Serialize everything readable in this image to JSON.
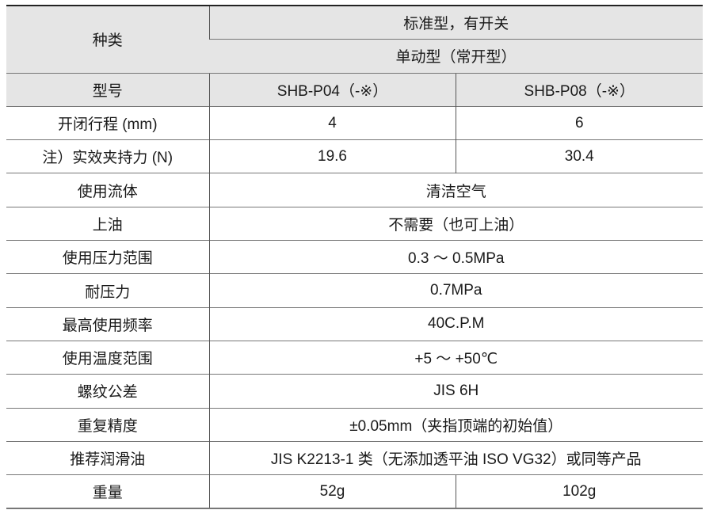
{
  "header": {
    "category_label": "种类",
    "type_line1": "标准型，有开关",
    "type_line2": "单动型（常开型）",
    "model_label": "型号",
    "models": [
      "SHB-P04（-※）",
      "SHB-P08（-※）"
    ]
  },
  "rows": [
    {
      "label": "开闭行程 (mm)",
      "values": [
        "4",
        "6"
      ]
    },
    {
      "label": "注）实效夹持力 (N)",
      "values": [
        "19.6",
        "30.4"
      ]
    },
    {
      "label": "使用流体",
      "value": "清洁空气"
    },
    {
      "label": "上油",
      "value": "不需要（也可上油）"
    },
    {
      "label": "使用压力范围",
      "value": "0.3 ～ 0.5MPa"
    },
    {
      "label": "耐压力",
      "value": "0.7MPa"
    },
    {
      "label": "最高使用频率",
      "value": "40C.P.M"
    },
    {
      "label": "使用温度范围",
      "value": "+5 ～ +50℃"
    },
    {
      "label": "螺纹公差",
      "value": "JIS 6H"
    },
    {
      "label": "重复精度",
      "value": "±0.05mm（夹指顶端的初始值）"
    },
    {
      "label": "推荐润滑油",
      "value": "JIS K2213-1 类（无添加透平油 ISO VG32）或同等产品"
    },
    {
      "label": "重量",
      "values": [
        "52g",
        "102g"
      ]
    }
  ],
  "colors": {
    "header_bg": "#e5e5e5",
    "text": "#1a1a1a"
  }
}
